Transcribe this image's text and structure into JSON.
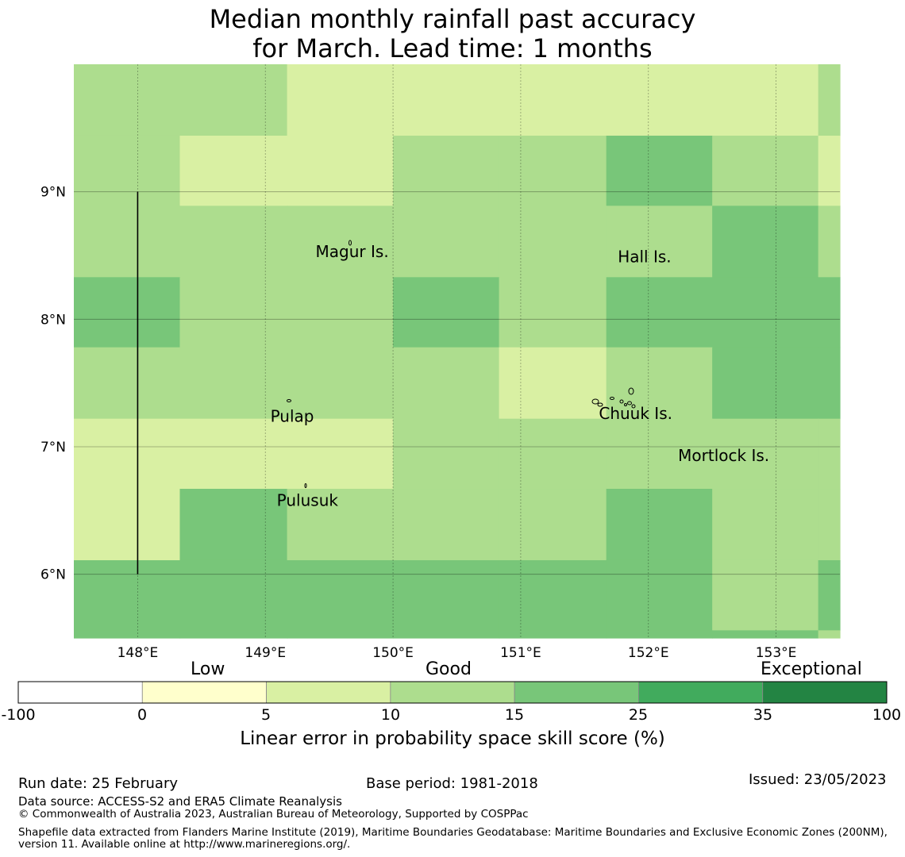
{
  "title": {
    "line1": "Median monthly rainfall past accuracy",
    "line2": "for March. Lead time: 1 months"
  },
  "map": {
    "lon_range": [
      147.5,
      153.5
    ],
    "lat_range": [
      5.5,
      10.0
    ],
    "lon_ticks": [
      {
        "value": 148,
        "label": "148°E"
      },
      {
        "value": 149,
        "label": "149°E"
      },
      {
        "value": 150,
        "label": "150°E"
      },
      {
        "value": 151,
        "label": "151°E"
      },
      {
        "value": 152,
        "label": "152°E"
      },
      {
        "value": 153,
        "label": "153°E"
      }
    ],
    "lat_ticks": [
      {
        "value": 9,
        "label": "9°N"
      },
      {
        "value": 8,
        "label": "8°N"
      },
      {
        "value": 7,
        "label": "7°N"
      },
      {
        "value": 6,
        "label": "6°N"
      }
    ],
    "grid_cell_lon_edges": [
      147.5,
      148.33,
      149.17,
      150.0,
      150.83,
      151.67,
      152.5,
      153.33,
      153.5
    ],
    "grid_cell_lat_edges": [
      10.0,
      9.44,
      8.89,
      8.33,
      7.78,
      7.22,
      6.67,
      6.11,
      5.56,
      5.5
    ],
    "skill_classes": [
      [
        3,
        3,
        2,
        2,
        2,
        2,
        2,
        3
      ],
      [
        3,
        2,
        2,
        3,
        3,
        4,
        3,
        2
      ],
      [
        3,
        3,
        3,
        3,
        3,
        3,
        4,
        3
      ],
      [
        4,
        3,
        3,
        4,
        3,
        4,
        4,
        4
      ],
      [
        3,
        3,
        3,
        3,
        2,
        3,
        4,
        4
      ],
      [
        2,
        2,
        2,
        3,
        3,
        3,
        3,
        3
      ],
      [
        2,
        4,
        3,
        3,
        3,
        4,
        3,
        3
      ],
      [
        4,
        4,
        4,
        4,
        4,
        4,
        3,
        4
      ],
      [
        4,
        4,
        4,
        4,
        4,
        4,
        4,
        3
      ]
    ],
    "place_labels": [
      {
        "name": "Magur Is.",
        "lon": 149.68,
        "lat": 8.53
      },
      {
        "name": "Hall Is.",
        "lon": 151.97,
        "lat": 8.49
      },
      {
        "name": "Pulap",
        "lon": 149.21,
        "lat": 7.24
      },
      {
        "name": "Chuuk Is.",
        "lon": 151.9,
        "lat": 7.26
      },
      {
        "name": "Mortlock Is.",
        "lon": 152.59,
        "lat": 6.93
      },
      {
        "name": "Pulusuk",
        "lon": 149.33,
        "lat": 6.58
      }
    ],
    "eez_boundary_lon": 148.0,
    "eez_boundary_lat_range": [
      6.0,
      9.0
    ]
  },
  "colorbar": {
    "categories": [
      {
        "label": "Low"
      },
      {
        "label": "Good"
      },
      {
        "label": "Exceptional"
      }
    ],
    "boundaries": [
      "-100",
      "0",
      "5",
      "10",
      "15",
      "25",
      "35",
      "100"
    ],
    "colors": [
      "#ffffff",
      "#ffffcc",
      "#d9f0a3",
      "#addd8e",
      "#78c679",
      "#41ab5d",
      "#238443"
    ],
    "title": "Linear error in probability space skill score (%)"
  },
  "footer": {
    "run_date": "Run date: 25 February",
    "base_period": "Base period: 1981-2018",
    "issued": "Issued: 23/05/2023",
    "data_source": "Data source: ACCESS-S2 and ERA5 Climate Reanalysis",
    "copyright": "© Commonwealth of Australia 2023, Australian Bureau of Meteorology, Supported by COSPPac",
    "shapefile": "Shapefile data extracted from Flanders Marine Institute (2019), Maritime Boundaries Geodatabase: Maritime Boundaries and Exclusive Economic Zones (200NM), version 11. Available online at http://www.marineregions.org/."
  }
}
